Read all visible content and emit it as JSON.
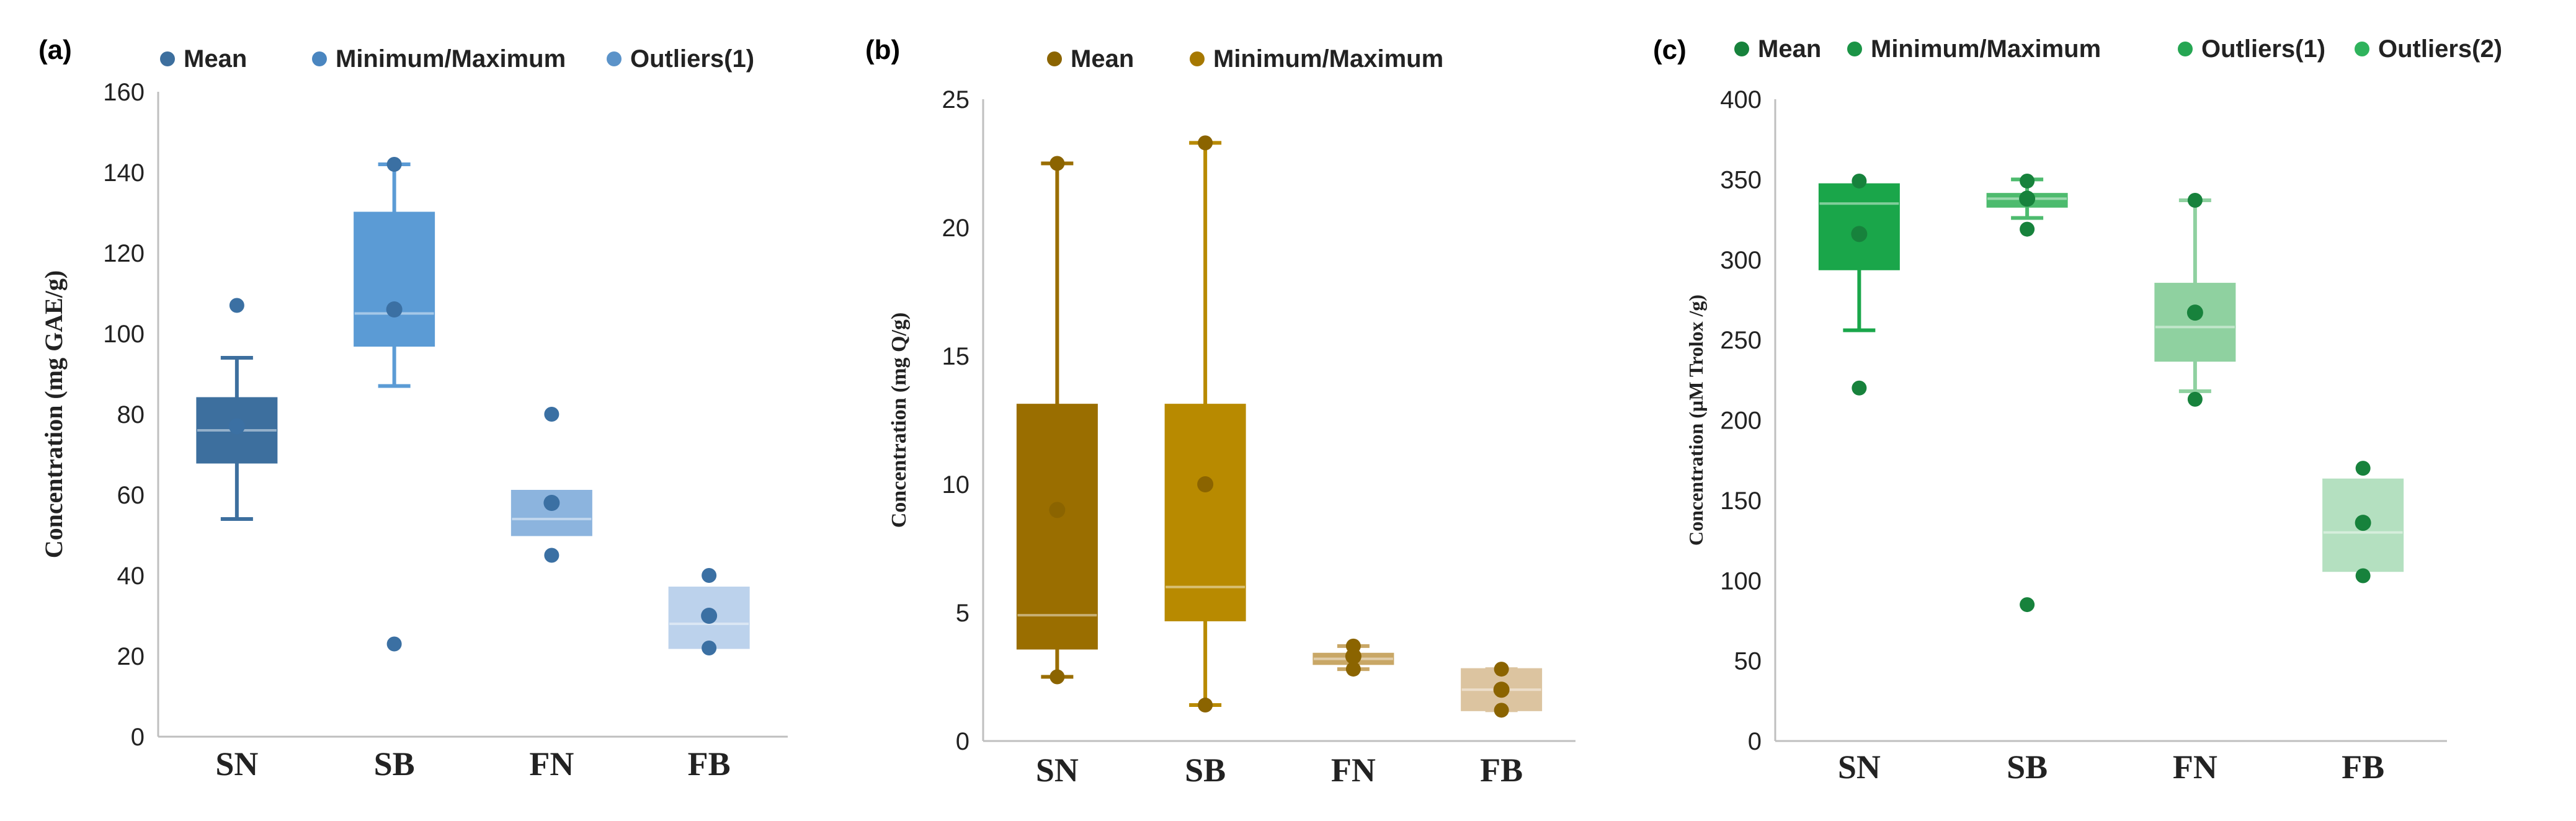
{
  "chart_data": [
    {
      "id": "a",
      "type": "boxplot",
      "panel_label": "(a)",
      "ylabel": "Concentration (mg GAE/g)",
      "ylim": [
        0,
        160
      ],
      "yticks": [
        0,
        20,
        40,
        60,
        80,
        100,
        120,
        140,
        160
      ],
      "categories": [
        "SN",
        "SB",
        "FN",
        "FB"
      ],
      "legend": [
        "Mean",
        "Minimum/Maximum",
        "Outliers(1)"
      ],
      "legend_colors": [
        "#3d6f9e",
        "#4a86c0",
        "#5b93c9"
      ],
      "boxes": [
        {
          "category": "SN",
          "color": "#3d6f9e",
          "q1": 68,
          "median": 76,
          "q3": 84,
          "whisker_low": 54,
          "whisker_high": 94,
          "mean": 77,
          "points": [
            107
          ]
        },
        {
          "category": "SB",
          "color": "#5b9bd5",
          "q1": 97,
          "median": 105,
          "q3": 130,
          "whisker_low": 87,
          "whisker_high": 142,
          "mean": 106,
          "points": [
            142,
            23
          ]
        },
        {
          "category": "FN",
          "color": "#8cb4de",
          "q1": 50,
          "median": 54,
          "q3": 61,
          "whisker_low": null,
          "whisker_high": null,
          "mean": 58,
          "points": [
            80,
            45
          ]
        },
        {
          "category": "FB",
          "color": "#bcd2ec",
          "q1": 22,
          "median": 28,
          "q3": 37,
          "whisker_low": null,
          "whisker_high": null,
          "mean": 30,
          "points": [
            40,
            22
          ]
        }
      ]
    },
    {
      "id": "b",
      "type": "boxplot",
      "panel_label": "(b)",
      "ylabel": "Concentration (mg Q/g)",
      "ylim": [
        0,
        25
      ],
      "yticks": [
        0,
        5,
        10,
        15,
        20,
        25
      ],
      "categories": [
        "SN",
        "SB",
        "FN",
        "FB"
      ],
      "legend": [
        "Mean",
        "Minimum/Maximum"
      ],
      "legend_colors": [
        "#8b6400",
        "#a67800"
      ],
      "boxes": [
        {
          "category": "SN",
          "color": "#9a6e00",
          "q1": 3.6,
          "median": 4.9,
          "q3": 13.1,
          "whisker_low": 2.5,
          "whisker_high": 22.5,
          "mean": 9.0,
          "points": []
        },
        {
          "category": "SB",
          "color": "#b88a00",
          "q1": 4.7,
          "median": 6.0,
          "q3": 13.1,
          "whisker_low": 1.4,
          "whisker_high": 23.3,
          "mean": 10.0,
          "points": []
        },
        {
          "category": "FN",
          "color": "#c9a766",
          "q1": 3.0,
          "median": 3.2,
          "q3": 3.4,
          "whisker_low": 2.8,
          "whisker_high": 3.7,
          "mean": 3.3,
          "points": []
        },
        {
          "category": "FB",
          "color": "#dcc4a0",
          "q1": 1.2,
          "median": 2.0,
          "q3": 2.8,
          "whisker_low": 1.2,
          "whisker_high": 2.8,
          "mean": 2.0,
          "points": []
        }
      ]
    },
    {
      "id": "c",
      "type": "boxplot",
      "panel_label": "(c)",
      "ylabel": "Concentration (µM Trolox /g)",
      "ylim": [
        0,
        400
      ],
      "yticks": [
        0,
        50,
        100,
        150,
        200,
        250,
        300,
        350,
        400
      ],
      "categories": [
        "SN",
        "SB",
        "FN",
        "FB"
      ],
      "legend": [
        "Mean",
        "Minimum/Maximum",
        "Outliers(1)",
        "Outliers(2)"
      ],
      "legend_colors": [
        "#17823c",
        "#1b9446",
        "#26a653",
        "#2fb35c"
      ],
      "boxes": [
        {
          "category": "SN",
          "color": "#1aa64a",
          "q1": 294,
          "median": 335,
          "q3": 347,
          "whisker_low": 256,
          "whisker_high": null,
          "mean": 316,
          "points": [
            349,
            220
          ]
        },
        {
          "category": "SB",
          "color": "#4dbb6e",
          "q1": 333,
          "median": 338,
          "q3": 341,
          "whisker_low": 326,
          "whisker_high": 350,
          "mean": 338,
          "points": [
            349,
            319,
            85
          ]
        },
        {
          "category": "FN",
          "color": "#8fd1a0",
          "q1": 237,
          "median": 258,
          "q3": 285,
          "whisker_low": 218,
          "whisker_high": 337,
          "mean": 267,
          "points": [
            337,
            213
          ]
        },
        {
          "category": "FB",
          "color": "#b4e0c0",
          "q1": 106,
          "median": 130,
          "q3": 163,
          "whisker_low": null,
          "whisker_high": null,
          "mean": 136,
          "points": [
            170,
            103
          ]
        }
      ]
    }
  ]
}
